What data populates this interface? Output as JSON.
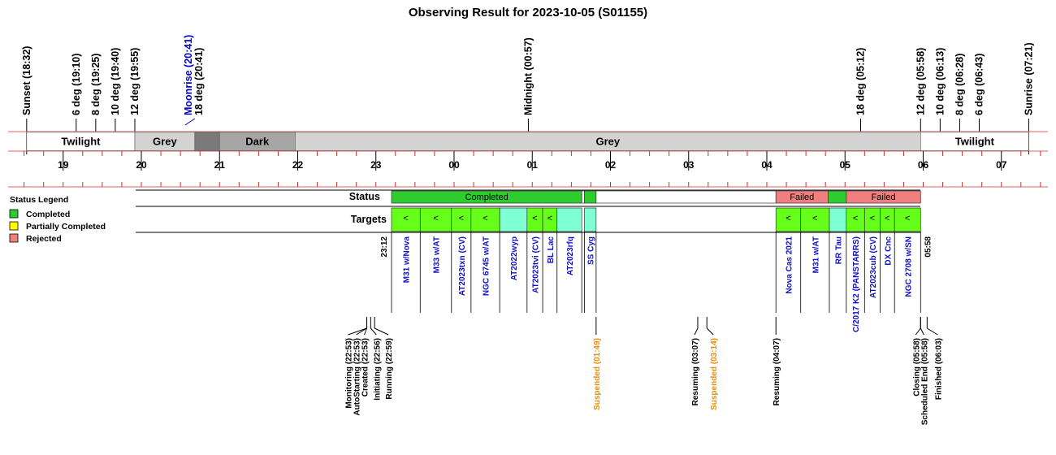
{
  "chart_data": {
    "type": "timeline",
    "title": "Observing Result for 2023-10-05 (S01155)",
    "time_axis": {
      "ticks": [
        "19",
        "20",
        "21",
        "22",
        "23",
        "00",
        "01",
        "02",
        "03",
        "04",
        "05",
        "06",
        "07"
      ]
    },
    "sky_events": [
      {
        "label": "Sunset (18:32)",
        "time": "18:32",
        "color": "#000000"
      },
      {
        "label": "6 deg (19:10)",
        "time": "19:10",
        "color": "#000000"
      },
      {
        "label": "8 deg (19:25)",
        "time": "19:25",
        "color": "#000000"
      },
      {
        "label": "10 deg (19:40)",
        "time": "19:40",
        "color": "#000000"
      },
      {
        "label": "12 deg (19:55)",
        "time": "19:55",
        "color": "#000000"
      },
      {
        "label": "Moonrise (20:41)",
        "time": "20:41",
        "color": "#0000cc"
      },
      {
        "label": "18 deg (20:41)",
        "time": "20:41",
        "color": "#000000"
      },
      {
        "label": "Midnight (00:57)",
        "time": "00:57",
        "color": "#000000"
      },
      {
        "label": "18 deg (05:12)",
        "time": "05:12",
        "color": "#000000"
      },
      {
        "label": "12 deg (05:58)",
        "time": "05:58",
        "color": "#000000"
      },
      {
        "label": "10 deg (06:13)",
        "time": "06:13",
        "color": "#000000"
      },
      {
        "label": "8 deg (06:28)",
        "time": "06:28",
        "color": "#000000"
      },
      {
        "label": "6 deg (06:43)",
        "time": "06:43",
        "color": "#000000"
      },
      {
        "label": "Sunrise (07:21)",
        "time": "07:21",
        "color": "#000000"
      }
    ],
    "sky_bands": [
      {
        "label": "Twilight",
        "start": "18:32",
        "end": "19:55",
        "color": "#ffffff"
      },
      {
        "label": "Grey",
        "start": "19:55",
        "end": "20:41",
        "color": "#d3d3d3"
      },
      {
        "label": "",
        "start": "20:41",
        "end": "21:00",
        "color": "#7a7a7a"
      },
      {
        "label": "Dark",
        "start": "21:00",
        "end": "21:58",
        "color": "#a6a6a6"
      },
      {
        "label": "Grey",
        "start": "21:58",
        "end": "05:58",
        "color": "#d3d3d3"
      },
      {
        "label": "Twilight",
        "start": "05:58",
        "end": "07:21",
        "color": "#ffffff"
      }
    ],
    "status_row": {
      "label": "Status",
      "segments": [
        {
          "label": "Completed",
          "start": "23:12",
          "end": "01:38",
          "color": "#2ecc2e"
        },
        {
          "label": "",
          "start": "01:38",
          "end": "01:40",
          "color": "#ffffff"
        },
        {
          "label": "",
          "start": "01:40",
          "end": "01:49",
          "color": "#2ecc2e"
        },
        {
          "label": "",
          "start": "01:49",
          "end": "04:07",
          "color": "#ffffff"
        },
        {
          "label": "Failed",
          "start": "04:07",
          "end": "04:47",
          "color": "#f08080"
        },
        {
          "label": "",
          "start": "04:47",
          "end": "05:01",
          "color": "#2ecc2e"
        },
        {
          "label": "Failed",
          "start": "05:01",
          "end": "05:58",
          "color": "#f08080"
        }
      ]
    },
    "targets_row": {
      "label": "Targets",
      "targets": [
        {
          "name": "M31 w/Nova",
          "start": "23:12",
          "end": "23:34",
          "color": "#66ff1a",
          "marker": "<"
        },
        {
          "name": "M33 w/AT",
          "start": "23:34",
          "end": "23:58",
          "color": "#66ff1a",
          "marker": "<"
        },
        {
          "name": "AT2023txn (CV)",
          "start": "23:58",
          "end": "00:13",
          "color": "#66ff1a",
          "marker": "<"
        },
        {
          "name": "NGC 6745 w/AT",
          "start": "00:13",
          "end": "00:35",
          "color": "#66ff1a",
          "marker": "<"
        },
        {
          "name": "AT2022wyp",
          "start": "00:35",
          "end": "00:56",
          "color": "#7fffd4",
          "marker": ""
        },
        {
          "name": "AT2023tvi (CV)",
          "start": "00:56",
          "end": "01:08",
          "color": "#66ff1a",
          "marker": "<"
        },
        {
          "name": "BL Lac",
          "start": "01:08",
          "end": "01:19",
          "color": "#66ff1a",
          "marker": "<"
        },
        {
          "name": "AT2023rfq",
          "start": "01:19",
          "end": "01:38",
          "color": "#7fffd4",
          "marker": ""
        },
        {
          "name": "SS Cyg",
          "start": "01:40",
          "end": "01:49",
          "color": "#7fffd4",
          "marker": ""
        },
        {
          "name": "Nova Cas 2021",
          "start": "04:07",
          "end": "04:26",
          "color": "#66ff1a",
          "marker": "<"
        },
        {
          "name": "M31 w/AT",
          "start": "04:26",
          "end": "04:48",
          "color": "#66ff1a",
          "marker": "<"
        },
        {
          "name": "RR Tau",
          "start": "04:48",
          "end": "05:01",
          "color": "#7fffd4",
          "marker": ""
        },
        {
          "name": "C/2017 K2 (PANSTARRS)",
          "start": "05:01",
          "end": "05:15",
          "color": "#66ff1a",
          "marker": "<"
        },
        {
          "name": "AT2023cub (CV)",
          "start": "05:15",
          "end": "05:27",
          "color": "#66ff1a",
          "marker": "<"
        },
        {
          "name": "DX Cnc",
          "start": "05:27",
          "end": "05:38",
          "color": "#66ff1a",
          "marker": "<"
        },
        {
          "name": "NGC 2708 w/SN",
          "start": "05:38",
          "end": "05:58",
          "color": "#66ff1a",
          "marker": "<"
        }
      ]
    },
    "markers": [
      {
        "label": "23:12",
        "time": "23:12"
      },
      {
        "label": "05:58",
        "time": "05:58"
      }
    ],
    "events": [
      {
        "label": "Monitoring (22:53)",
        "time": "22:53",
        "color": "#000000"
      },
      {
        "label": "AutoStarting (22:53)",
        "time": "22:53",
        "color": "#000000"
      },
      {
        "label": "Created (22:53)",
        "time": "22:53",
        "color": "#000000"
      },
      {
        "label": "Initiating (22:56)",
        "time": "22:56",
        "color": "#000000"
      },
      {
        "label": "Running (22:59)",
        "time": "22:59",
        "color": "#000000"
      },
      {
        "label": "Suspended (01:49)",
        "time": "01:49",
        "color": "#f08c00"
      },
      {
        "label": "Resuming (03:07)",
        "time": "03:07",
        "color": "#000000"
      },
      {
        "label": "Suspended (03:14)",
        "time": "03:14",
        "color": "#f08c00"
      },
      {
        "label": "Resuming (04:07)",
        "time": "04:07",
        "color": "#000000"
      },
      {
        "label": "Closing (05:58)",
        "time": "05:58",
        "color": "#000000"
      },
      {
        "label": "Scheduled End (05:58)",
        "time": "05:58",
        "color": "#000000"
      },
      {
        "label": "Finished (06:03)",
        "time": "06:03",
        "color": "#000000"
      }
    ],
    "legend": {
      "title": "Status Legend",
      "items": [
        {
          "label": "Completed",
          "color": "#2ecc2e"
        },
        {
          "label": "Partially Completed",
          "color": "#ffff00"
        },
        {
          "label": "Rejected",
          "color": "#f08080"
        }
      ]
    }
  }
}
